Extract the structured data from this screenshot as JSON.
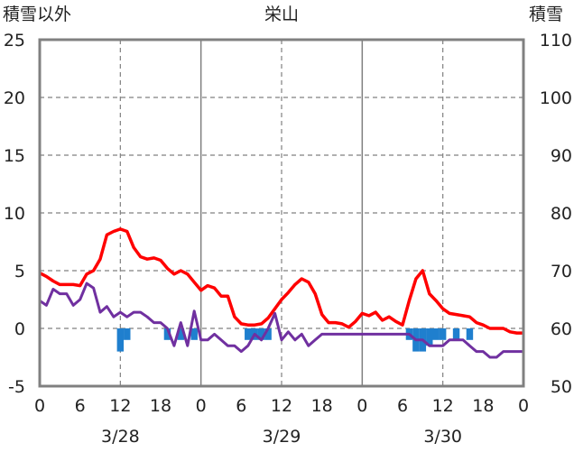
{
  "chart_data": {
    "type": "line",
    "title": "栄山",
    "left_axis_title": "積雪以外",
    "right_axis_title": "積雪",
    "x_range": [
      0,
      72
    ],
    "x_tick_labels": [
      "0",
      "6",
      "12",
      "18",
      "0",
      "6",
      "12",
      "18",
      "0",
      "6",
      "12",
      "18",
      "0"
    ],
    "day_labels": [
      "3/28",
      "3/29",
      "3/30"
    ],
    "y_left_range": [
      -5,
      25
    ],
    "y_left_ticks": [
      "-5",
      "0",
      "5",
      "10",
      "15",
      "20",
      "25"
    ],
    "y_right_range": [
      50,
      110
    ],
    "y_right_ticks": [
      "50",
      "60",
      "70",
      "80",
      "90",
      "100",
      "110"
    ],
    "grid": true,
    "series": [
      {
        "key": "red",
        "color": "#ff0000",
        "axis": "left",
        "x": [
          0,
          1,
          2,
          3,
          4,
          5,
          6,
          7,
          8,
          9,
          10,
          11,
          12,
          13,
          14,
          15,
          16,
          17,
          18,
          19,
          20,
          21,
          22,
          23,
          24,
          25,
          26,
          27,
          28,
          29,
          30,
          31,
          32,
          33,
          34,
          35,
          36,
          37,
          38,
          39,
          40,
          41,
          42,
          43,
          44,
          45,
          46,
          47,
          48,
          49,
          50,
          51,
          52,
          53,
          54,
          55,
          56,
          57,
          58,
          59,
          60,
          61,
          62,
          63,
          64,
          65,
          66,
          67,
          68,
          69,
          70,
          71,
          72
        ],
        "values": [
          4.8,
          4.5,
          4.1,
          3.8,
          3.8,
          3.8,
          3.7,
          4.7,
          5.0,
          6.0,
          8.1,
          8.4,
          8.6,
          8.4,
          7.0,
          6.2,
          6.0,
          6.1,
          5.9,
          5.2,
          4.7,
          5.0,
          4.7,
          4.0,
          3.3,
          3.7,
          3.5,
          2.8,
          2.8,
          1.0,
          0.4,
          0.3,
          0.3,
          0.4,
          0.9,
          1.7,
          2.5,
          3.1,
          3.8,
          4.3,
          4.0,
          3.0,
          1.2,
          0.5,
          0.5,
          0.4,
          0.1,
          0.6,
          1.3,
          1.1,
          1.4,
          0.7,
          1.0,
          0.6,
          0.3,
          2.4,
          4.3,
          5.0,
          3.0,
          2.4,
          1.7,
          1.3,
          1.2,
          1.1,
          1.0,
          0.5,
          0.3,
          0.0,
          0.0,
          0.0,
          -0.3,
          -0.4,
          -0.4
        ]
      },
      {
        "key": "purple",
        "color": "#7030a0",
        "axis": "left",
        "x": [
          0,
          1,
          2,
          3,
          4,
          5,
          6,
          7,
          8,
          9,
          10,
          11,
          12,
          13,
          14,
          15,
          16,
          17,
          18,
          19,
          20,
          21,
          22,
          23,
          24,
          25,
          26,
          27,
          28,
          29,
          30,
          31,
          32,
          33,
          34,
          35,
          36,
          37,
          38,
          39,
          40,
          41,
          42,
          43,
          44,
          45,
          46,
          47,
          48,
          49,
          50,
          51,
          52,
          53,
          54,
          55,
          56,
          57,
          58,
          59,
          60,
          61,
          62,
          63,
          64,
          65,
          66,
          67,
          68,
          69,
          70,
          71,
          72
        ],
        "values": [
          2.4,
          2.0,
          3.4,
          3.0,
          3.0,
          2.0,
          2.5,
          3.9,
          3.5,
          1.4,
          1.9,
          1.0,
          1.4,
          1.0,
          1.4,
          1.4,
          1.0,
          0.5,
          0.5,
          0.0,
          -1.5,
          0.5,
          -1.5,
          1.5,
          -1.0,
          -1.0,
          -0.5,
          -1.0,
          -1.5,
          -1.5,
          -2.0,
          -1.5,
          -0.5,
          -1.0,
          0.0,
          1.3,
          -1.0,
          -0.3,
          -1.0,
          -0.5,
          -1.5,
          -1.0,
          -0.5,
          -0.5,
          -0.5,
          -0.5,
          -0.5,
          -0.5,
          -0.5,
          -0.5,
          -0.5,
          -0.5,
          -0.5,
          -0.5,
          -0.5,
          -0.5,
          -1.0,
          -1.0,
          -1.5,
          -1.5,
          -1.5,
          -1.0,
          -1.0,
          -1.0,
          -1.5,
          -2.0,
          -2.0,
          -2.5,
          -2.5,
          -2.0,
          -2.0,
          -2.0,
          -2.0
        ]
      },
      {
        "key": "blue",
        "color": "#1f7fce",
        "axis": "left",
        "type": "bar",
        "x": [
          12,
          13,
          19,
          21,
          23,
          31,
          32,
          33,
          34,
          55,
          56,
          57,
          58,
          59,
          60,
          62,
          64
        ],
        "values": [
          -2.0,
          -1.0,
          -1.0,
          -1.0,
          -1.0,
          -1.0,
          -1.0,
          -1.0,
          -1.0,
          -1.0,
          -2.0,
          -2.0,
          -1.5,
          -1.0,
          -1.0,
          -1.0,
          -1.0
        ]
      }
    ]
  }
}
